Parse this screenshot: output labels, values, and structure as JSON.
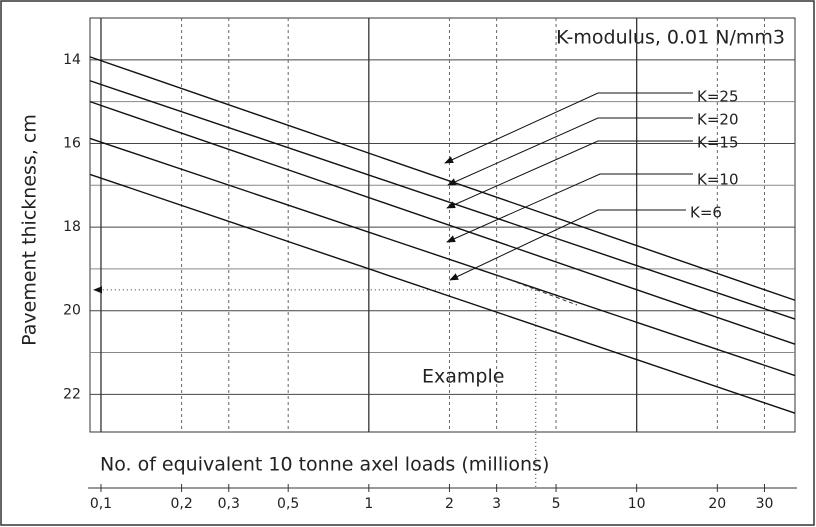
{
  "chart_data": {
    "type": "line",
    "title": "K-modulus, 0.01 N/mm3",
    "x_label": "No. of equivalent 10 tonne axel loads (millions)",
    "y_label": "Pavement thickness, cm",
    "x_log": true,
    "y_inverted": true,
    "grid": true,
    "xlim": [
      0.091,
      39
    ],
    "ylim": [
      13,
      22.9
    ],
    "xticks": [
      {
        "value": 0.1,
        "label": "0,1"
      },
      {
        "value": 0.2,
        "label": "0,2"
      },
      {
        "value": 0.3,
        "label": "0,3"
      },
      {
        "value": 0.5,
        "label": "0,5"
      },
      1,
      2,
      3,
      5,
      10,
      20,
      30
    ],
    "yticks": [
      14,
      16,
      18,
      20,
      22
    ],
    "y_minor_ticks": [
      15,
      17,
      19,
      21
    ],
    "series": [
      {
        "name": "K=25",
        "color": "#111111",
        "x": [
          0.091,
          39
        ],
        "values": [
          13.93,
          19.75
        ]
      },
      {
        "name": "K=20",
        "color": "#111111",
        "x": [
          0.091,
          39
        ],
        "values": [
          14.5,
          20.2
        ]
      },
      {
        "name": "K=15",
        "color": "#111111",
        "x": [
          0.091,
          39
        ],
        "values": [
          15.0,
          20.8
        ]
      },
      {
        "name": "K=10",
        "color": "#111111",
        "x": [
          0.091,
          39
        ],
        "values": [
          15.88,
          21.55
        ]
      },
      {
        "name": "K=6",
        "color": "#111111",
        "x": [
          0.091,
          39
        ],
        "values": [
          16.74,
          22.45
        ]
      }
    ],
    "example": {
      "label": "Example",
      "x": 4.2,
      "y": 19.5
    }
  }
}
